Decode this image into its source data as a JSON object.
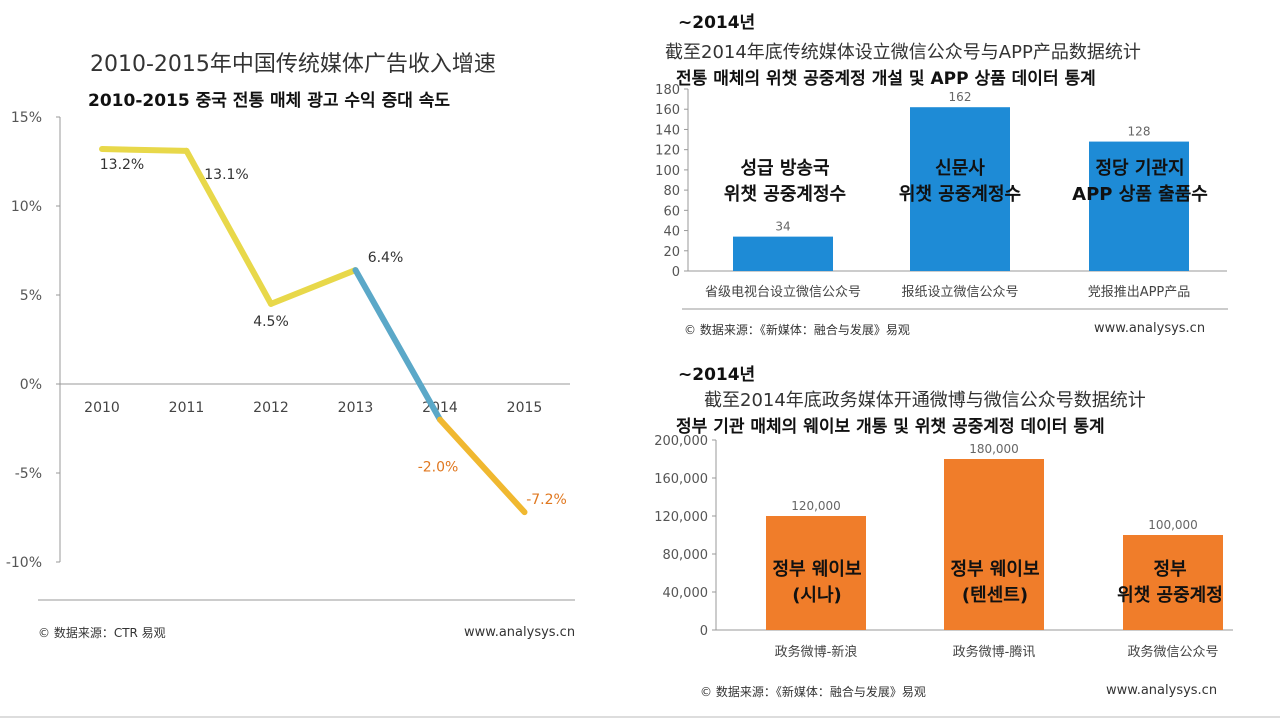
{
  "left_chart": {
    "title_cn": "2010-2015年中国传统媒体广告收入增速",
    "title_kr": "2010-2015 중국 전통 매체 광고 수익 증대 속도",
    "footer": "© 数据来源：CTR 易观",
    "site": "www.analysys.cn",
    "colors": {
      "line_yellow": "#e8d84a",
      "line_blue": "#5ba8c8",
      "line_orange": "#f0b830",
      "orange_label": "#e07820"
    }
  },
  "top_right": {
    "period": "~2014년",
    "title_cn": "截至2014年底传统媒体设立微信公众号与APP产品数据统计",
    "title_kr": "전통 매체의 위챗 공중계정 개설 및 APP 상품 데이터 통계",
    "footer": "© 数据来源：《新媒体：融合与发展》易观",
    "site": "www.analysys.cn",
    "kr_labels": [
      [
        "성급 방송국",
        "위챗 공중계정수"
      ],
      [
        "신문사",
        "위챗 공중계정수"
      ],
      [
        "정당 기관지",
        "APP 상품 출품수"
      ]
    ]
  },
  "bottom_right": {
    "period": "~2014년",
    "title_cn": "截至2014年底政务媒体开通微博与微信公众号数据统计",
    "title_kr": "정부 기관 매체의 웨이보 개통 및 위챗 공중계정 데이터 통계",
    "footer": "© 数据来源：《新媒体：融合与发展》易观",
    "site": "www.analysys.cn",
    "kr_labels": [
      [
        "정부 웨이보",
        "(시나)"
      ],
      [
        "정부 웨이보",
        "(텐센트)"
      ],
      [
        "정부",
        "위챗 공중계정"
      ]
    ]
  },
  "chart_data": [
    {
      "type": "line",
      "title": "2010-2015年中国传统媒体广告收入增速",
      "x": [
        "2010",
        "2011",
        "2012",
        "2013",
        "2014",
        "2015"
      ],
      "values": [
        13.2,
        13.1,
        4.5,
        6.4,
        -2.0,
        -7.2
      ],
      "labels": [
        "13.2%",
        "13.1%",
        "4.5%",
        "6.4%",
        "-2.0%",
        "-7.2%"
      ],
      "ylim": [
        -10,
        15
      ],
      "yticks": [
        15,
        10,
        5,
        0,
        -5,
        -10
      ],
      "ytick_labels": [
        "15%",
        "10%",
        "5%",
        "0%",
        "-5%",
        "-10%"
      ]
    },
    {
      "type": "bar",
      "title": "截至2014年底传统媒体设立微信公众号与APP产品数据统计",
      "categories": [
        "省级电视台设立微信公众号",
        "报纸设立微信公众号",
        "党报推出APP产品"
      ],
      "values": [
        34,
        162,
        128
      ],
      "ylim": [
        0,
        180
      ],
      "yticks": [
        0,
        20,
        40,
        60,
        80,
        100,
        120,
        140,
        160,
        180
      ],
      "ytick_labels": [
        "0",
        "20",
        "40",
        "60",
        "80",
        "100",
        "120",
        "140",
        "160",
        "180"
      ],
      "value_labels": [
        "34",
        "162",
        "128"
      ],
      "color": "#1e8bd6"
    },
    {
      "type": "bar",
      "title": "截至2014年底政务媒体开通微博与微信公众号数据统计",
      "categories": [
        "政务微博-新浪",
        "政务微博-腾讯",
        "政务微信公众号"
      ],
      "values": [
        120000,
        180000,
        100000
      ],
      "ylim": [
        0,
        200000
      ],
      "yticks": [
        0,
        40000,
        80000,
        120000,
        160000,
        200000
      ],
      "ytick_labels": [
        "0",
        "40,000",
        "80,000",
        "120,000",
        "160,000",
        "200,000"
      ],
      "value_labels": [
        "120,000",
        "180,000",
        "100,000"
      ],
      "color": "#f07d2a"
    }
  ]
}
